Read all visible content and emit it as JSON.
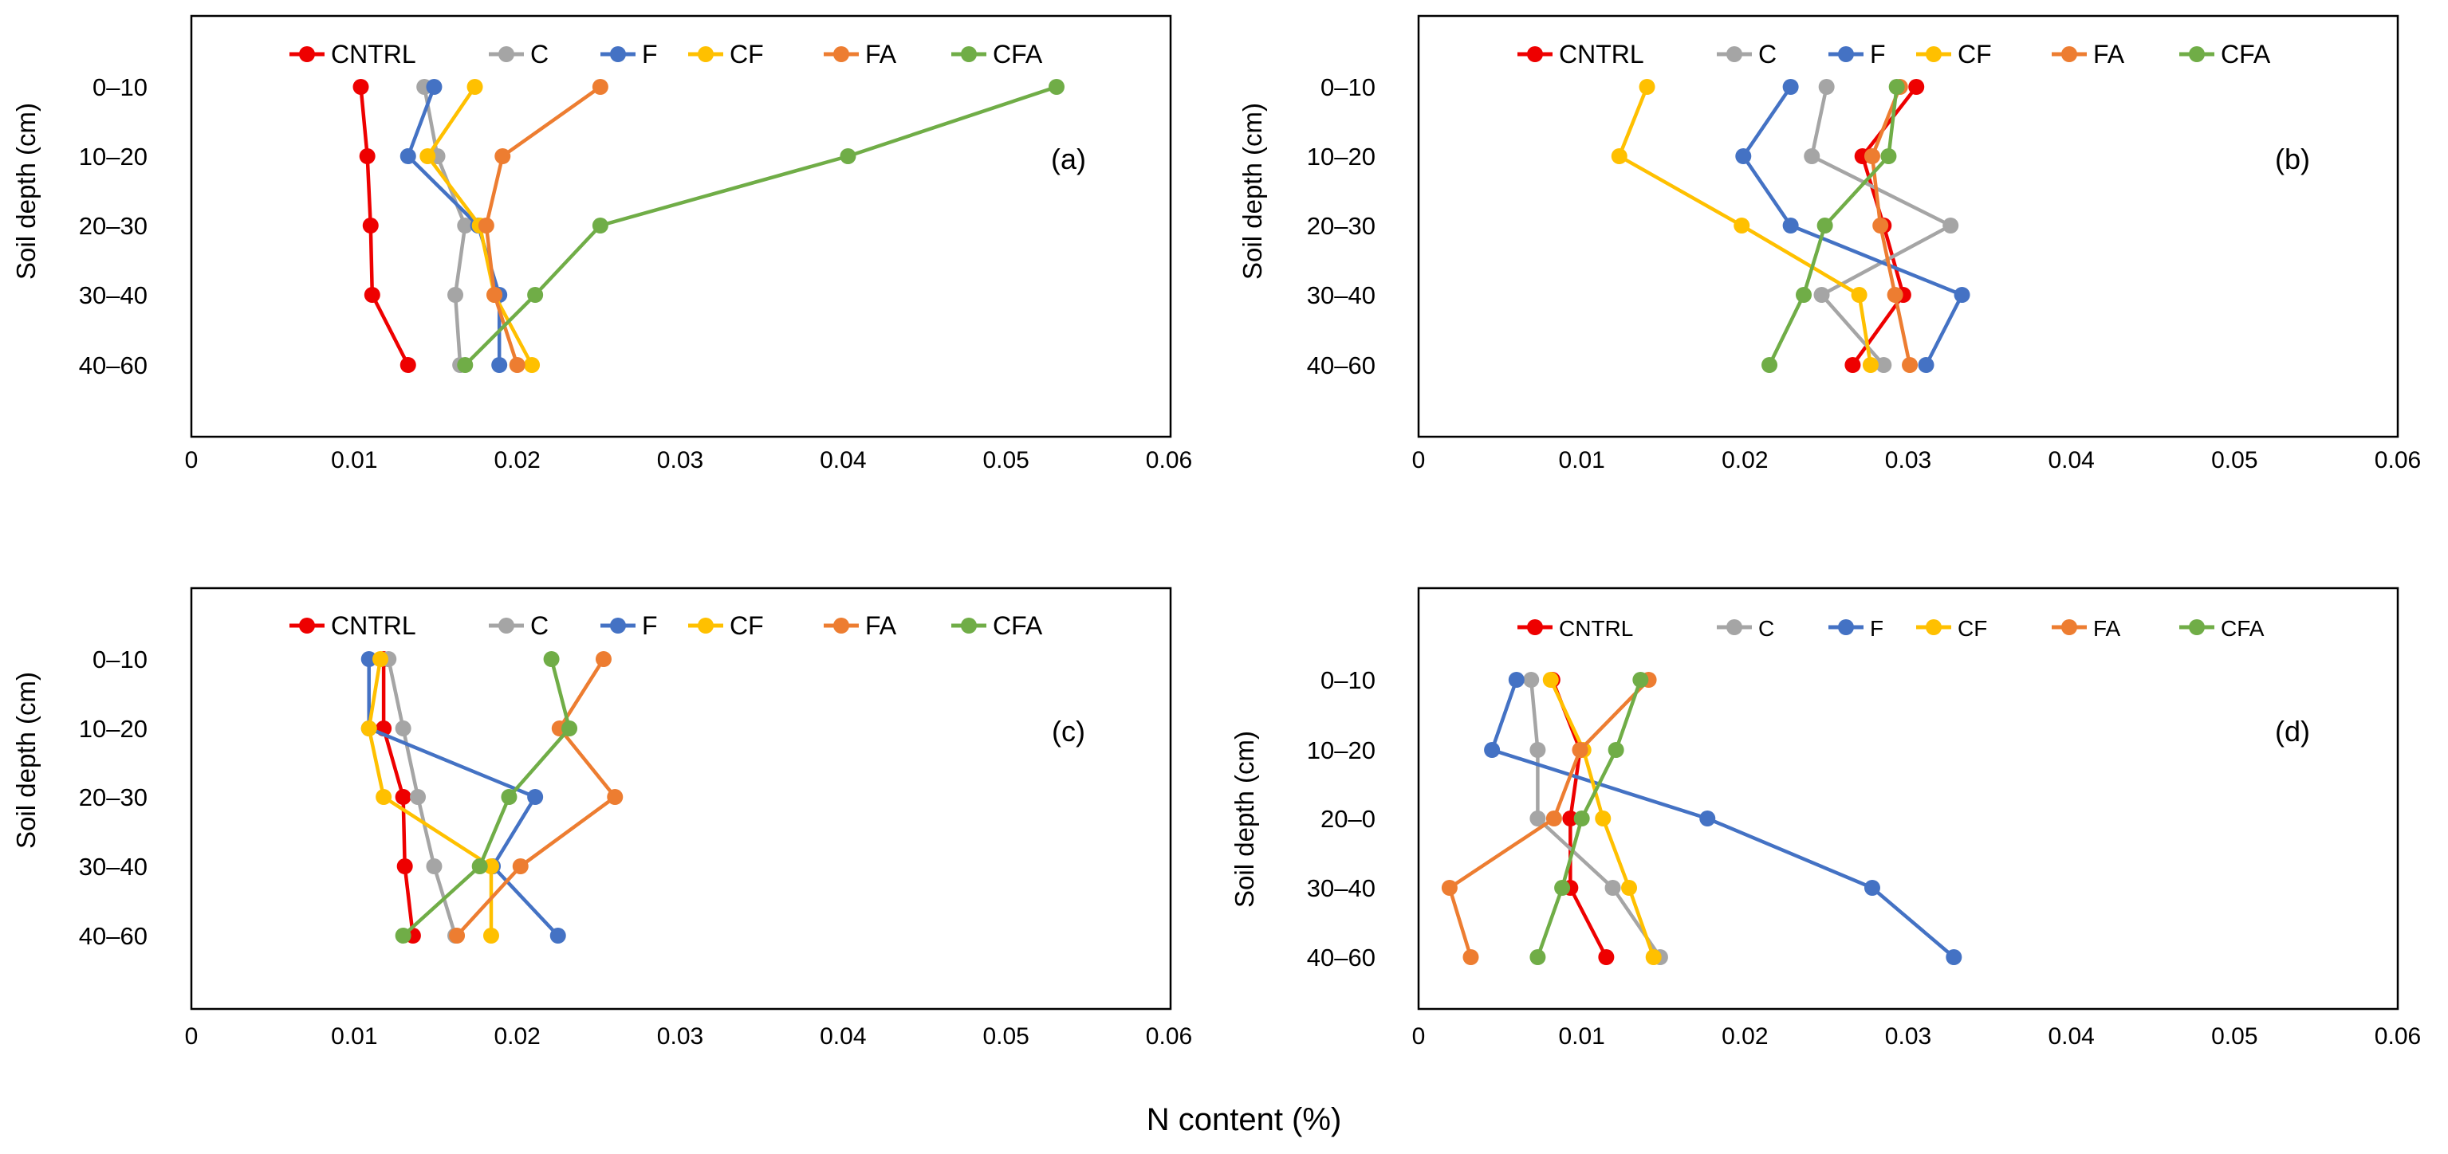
{
  "shared": {
    "x_axis_label": "N content (%)",
    "y_axis_label": "Soil depth (cm)",
    "x_ticks": [
      "0",
      "0.01",
      "0.02",
      "0.03",
      "0.04",
      "0.05",
      "0.06"
    ],
    "legend": [
      "CNTRL",
      "C",
      "F",
      "CF",
      "FA",
      "CFA"
    ],
    "colors": {
      "CNTRL": "#EE0000",
      "C": "#A5A5A5",
      "F": "#4472C4",
      "CF": "#FFC000",
      "FA": "#ED7D31",
      "CFA": "#70AD47"
    }
  },
  "chart_data": [
    {
      "type": "line",
      "panel": "(a)",
      "xlabel": "N content (%)",
      "ylabel": "Soil depth (cm)",
      "xlim": [
        0,
        0.06
      ],
      "categories": [
        "0–10",
        "10–20",
        "20–30",
        "30–40",
        "40–60"
      ],
      "series": [
        {
          "name": "CNTRL",
          "values": [
            0.0104,
            0.0108,
            0.011,
            0.0111,
            0.0133
          ]
        },
        {
          "name": "C",
          "values": [
            0.0143,
            0.0151,
            0.0168,
            0.0162,
            0.0165
          ]
        },
        {
          "name": "F",
          "values": [
            0.0149,
            0.0133,
            0.0176,
            0.0189,
            0.0189
          ]
        },
        {
          "name": "CF",
          "values": [
            0.0174,
            0.0145,
            0.0177,
            0.0186,
            0.0209
          ]
        },
        {
          "name": "FA",
          "values": [
            0.0251,
            0.0191,
            0.0181,
            0.0186,
            0.02
          ]
        },
        {
          "name": "CFA",
          "values": [
            0.0531,
            0.0403,
            0.0251,
            0.0211,
            0.0168
          ]
        }
      ]
    },
    {
      "type": "line",
      "panel": "(b)",
      "xlabel": "N content (%)",
      "ylabel": "Soil depth (cm)",
      "xlim": [
        0,
        0.06
      ],
      "categories": [
        "0–10",
        "10–20",
        "20–30",
        "30–40",
        "40–60"
      ],
      "series": [
        {
          "name": "CNTRL",
          "values": [
            0.0305,
            0.0272,
            0.0285,
            0.0297,
            0.0266
          ]
        },
        {
          "name": "C",
          "values": [
            0.025,
            0.0241,
            0.0326,
            0.0247,
            0.0285
          ]
        },
        {
          "name": "F",
          "values": [
            0.0228,
            0.0199,
            0.0228,
            0.0333,
            0.0311
          ]
        },
        {
          "name": "CF",
          "values": [
            0.014,
            0.0123,
            0.0198,
            0.027,
            0.0277
          ]
        },
        {
          "name": "FA",
          "values": [
            0.0295,
            0.0278,
            0.0283,
            0.0292,
            0.0301
          ]
        },
        {
          "name": "CFA",
          "values": [
            0.0293,
            0.0288,
            0.0249,
            0.0236,
            0.0215
          ]
        }
      ]
    },
    {
      "type": "line",
      "panel": "(c)",
      "xlabel": "N content (%)",
      "ylabel": "Soil depth (cm)",
      "xlim": [
        0,
        0.06
      ],
      "categories": [
        "0–10",
        "10–20",
        "20–30",
        "30–40",
        "40–60"
      ],
      "series": [
        {
          "name": "CNTRL",
          "values": [
            0.0118,
            0.0118,
            0.013,
            0.0131,
            0.0136
          ]
        },
        {
          "name": "C",
          "values": [
            0.0121,
            0.013,
            0.0139,
            0.0149,
            0.0162
          ]
        },
        {
          "name": "F",
          "values": [
            0.0109,
            0.0109,
            0.0211,
            0.0185,
            0.0225
          ]
        },
        {
          "name": "CF",
          "values": [
            0.0116,
            0.0109,
            0.0118,
            0.0184,
            0.0184
          ]
        },
        {
          "name": "FA",
          "values": [
            0.0253,
            0.0226,
            0.026,
            0.0202,
            0.0163
          ]
        },
        {
          "name": "CFA",
          "values": [
            0.0221,
            0.0232,
            0.0195,
            0.0177,
            0.013
          ]
        }
      ]
    },
    {
      "type": "line",
      "panel": "(d)",
      "xlabel": "N content (%)",
      "ylabel": "Soil depth (cm)",
      "xlim": [
        0,
        0.06
      ],
      "categories": [
        "0–10",
        "10–20",
        "20–0",
        "30–40",
        "40–60"
      ],
      "series": [
        {
          "name": "CNTRL",
          "values": [
            0.0082,
            0.0099,
            0.0093,
            0.0093,
            0.0115
          ]
        },
        {
          "name": "C",
          "values": [
            0.0069,
            0.0073,
            0.0073,
            0.0119,
            0.0148
          ]
        },
        {
          "name": "F",
          "values": [
            0.006,
            0.0045,
            0.0177,
            0.0278,
            0.0328
          ]
        },
        {
          "name": "CF",
          "values": [
            0.0081,
            0.0101,
            0.0113,
            0.0129,
            0.0144
          ]
        },
        {
          "name": "FA",
          "values": [
            0.0141,
            0.0099,
            0.0083,
            0.0019,
            0.0032
          ]
        },
        {
          "name": "CFA",
          "values": [
            0.0136,
            0.0121,
            0.01,
            0.0088,
            0.0073
          ]
        }
      ]
    }
  ]
}
